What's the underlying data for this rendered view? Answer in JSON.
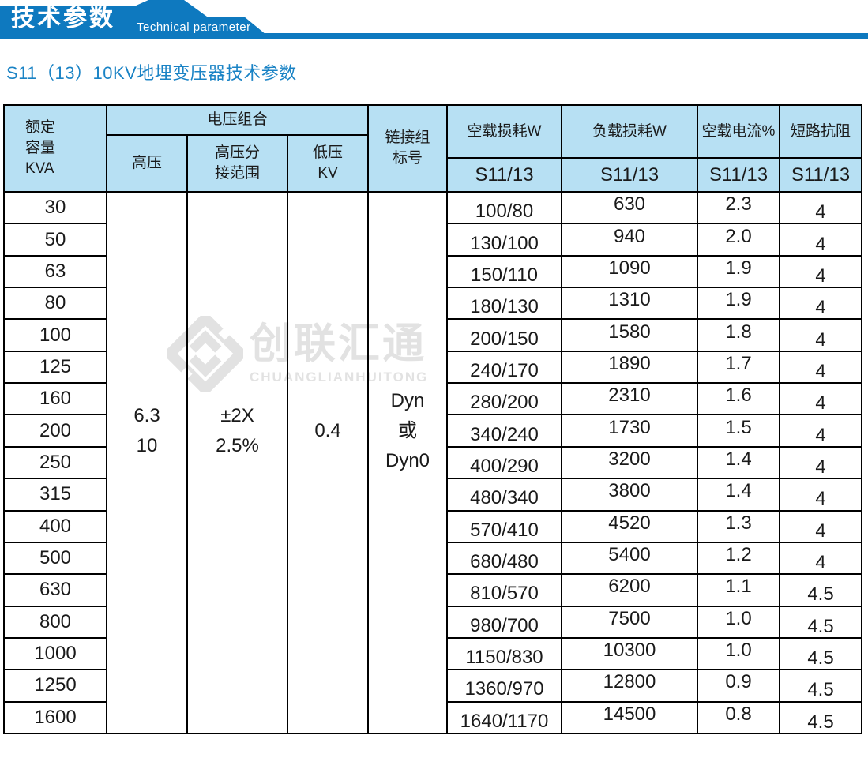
{
  "banner": {
    "title_cn": "技术参数",
    "title_en": "Technical parameter"
  },
  "page": {
    "title": "S11（13）10KV地埋变压器技术参数"
  },
  "colors": {
    "banner_blue": "#0e79bf",
    "title_blue": "#1a83c5",
    "table_header_bg": "#b7e0f3",
    "table_border": "#000000",
    "watermark_gray": "#e2e2e2"
  },
  "watermark": {
    "cn": "创联汇通",
    "en": "CHUANGLIANHUITONG"
  },
  "table": {
    "header": {
      "rated_capacity": "额定\n容量\nKVA",
      "voltage_combo": "电压组合",
      "hv": "高压",
      "hv_tap_range": "高压分\n接范围",
      "lv": "低压\nKV",
      "link_group": "链接组\n标号",
      "no_load_loss": "空载损耗W",
      "load_loss": "负载损耗W",
      "no_load_current": "空载电流%",
      "impedance": "短路抗阻",
      "model_sub": "S11/13"
    },
    "merged": {
      "hv": "6.3\n10",
      "tap": "±2X\n2.5%",
      "lv": "0.4",
      "link": "Dyn\n或\nDyn0"
    },
    "rows": [
      {
        "kva": "30",
        "no_load": "100/80",
        "load": "630",
        "current": "2.3",
        "impedance": "4"
      },
      {
        "kva": "50",
        "no_load": "130/100",
        "load": "940",
        "current": "2.0",
        "impedance": "4"
      },
      {
        "kva": "63",
        "no_load": "150/110",
        "load": "1090",
        "current": "1.9",
        "impedance": "4"
      },
      {
        "kva": "80",
        "no_load": "180/130",
        "load": "1310",
        "current": "1.9",
        "impedance": "4"
      },
      {
        "kva": "100",
        "no_load": "200/150",
        "load": "1580",
        "current": "1.8",
        "impedance": "4"
      },
      {
        "kva": "125",
        "no_load": "240/170",
        "load": "1890",
        "current": "1.7",
        "impedance": "4"
      },
      {
        "kva": "160",
        "no_load": "280/200",
        "load": "2310",
        "current": "1.6",
        "impedance": "4"
      },
      {
        "kva": "200",
        "no_load": "340/240",
        "load": "1730",
        "current": "1.5",
        "impedance": "4"
      },
      {
        "kva": "250",
        "no_load": "400/290",
        "load": "3200",
        "current": "1.4",
        "impedance": "4"
      },
      {
        "kva": "315",
        "no_load": "480/340",
        "load": "3800",
        "current": "1.4",
        "impedance": "4"
      },
      {
        "kva": "400",
        "no_load": "570/410",
        "load": "4520",
        "current": "1.3",
        "impedance": "4"
      },
      {
        "kva": "500",
        "no_load": "680/480",
        "load": "5400",
        "current": "1.2",
        "impedance": "4"
      },
      {
        "kva": "630",
        "no_load": "810/570",
        "load": "6200",
        "current": "1.1",
        "impedance": "4.5"
      },
      {
        "kva": "800",
        "no_load": "980/700",
        "load": "7500",
        "current": "1.0",
        "impedance": "4.5"
      },
      {
        "kva": "1000",
        "no_load": "1150/830",
        "load": "10300",
        "current": "1.0",
        "impedance": "4.5"
      },
      {
        "kva": "1250",
        "no_load": "1360/970",
        "load": "12800",
        "current": "0.9",
        "impedance": "4.5"
      },
      {
        "kva": "1600",
        "no_load": "1640/1170",
        "load": "14500",
        "current": "0.8",
        "impedance": "4.5"
      }
    ]
  }
}
